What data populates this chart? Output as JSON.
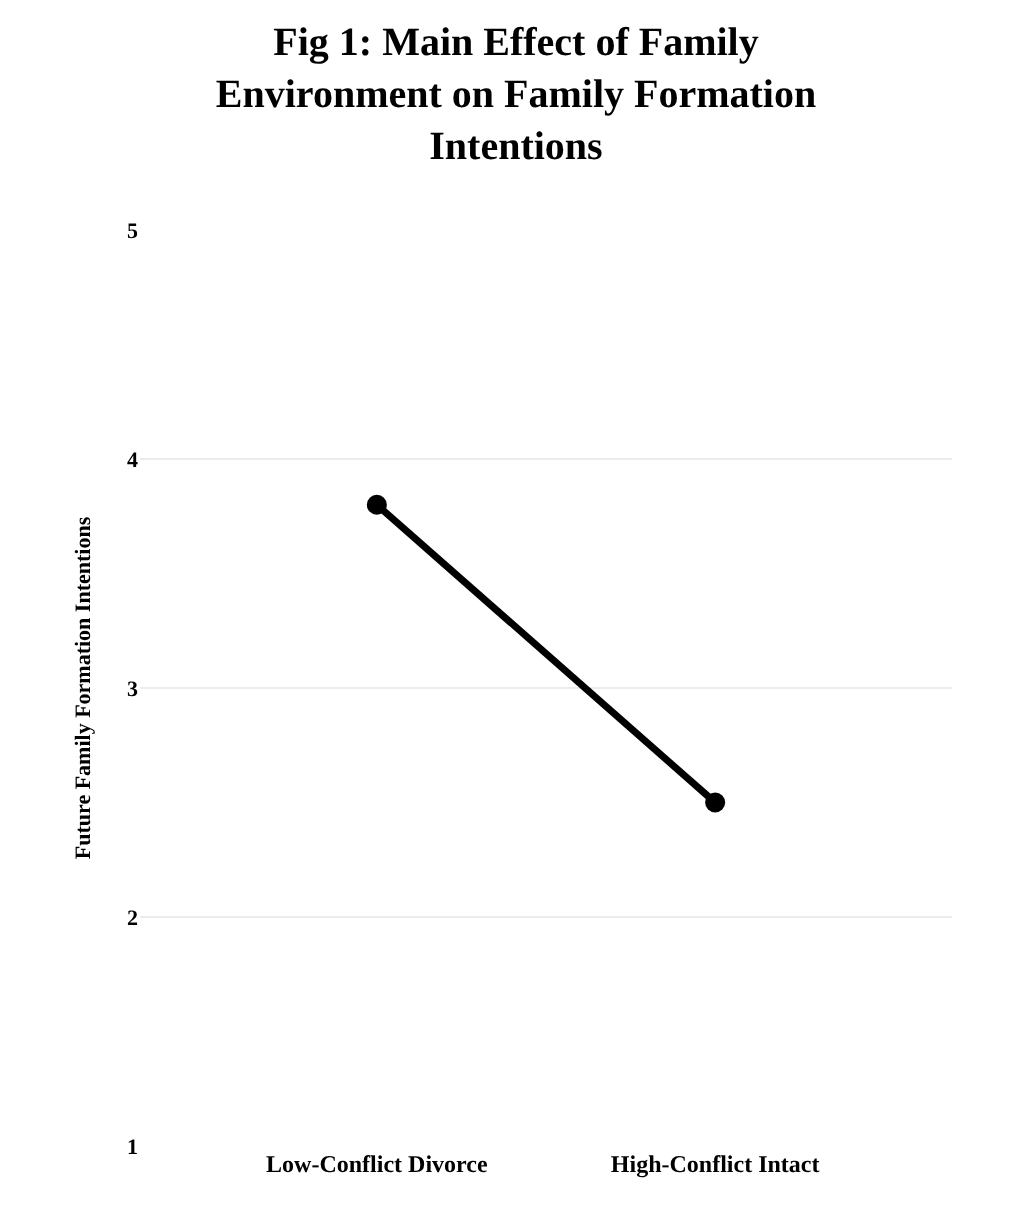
{
  "chart_data": {
    "type": "line",
    "title": "Fig 1: Main Effect of Family Environment on Family Formation Intentions",
    "ylabel": "Future Family Formation Intentions",
    "categories": [
      "Low-Conflict Divorce",
      "High-Conflict Intact"
    ],
    "series": [
      {
        "color": "#000000",
        "values": [
          3.8,
          2.5
        ]
      }
    ],
    "ylim": [
      1,
      5
    ],
    "yticks": [
      1,
      2,
      3,
      4,
      5
    ],
    "grid": "y",
    "marker": "circle",
    "line_style": "solid"
  }
}
